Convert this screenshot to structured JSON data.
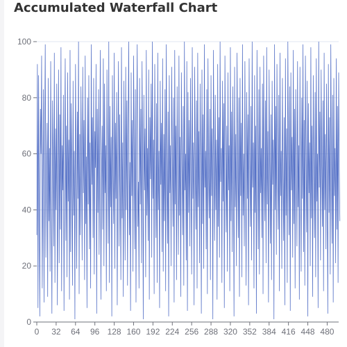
{
  "title": "Accumulated Waterfall Chart",
  "colors": {
    "series": "#5470c6",
    "grid": "#e0e6f1",
    "axis": "#6e7079"
  },
  "chart_data": {
    "type": "bar",
    "title": "Accumulated Waterfall Chart",
    "xlabel": "",
    "ylabel": "",
    "ylim": [
      0,
      100
    ],
    "y_ticks": [
      0,
      20,
      40,
      60,
      80,
      100
    ],
    "x_tick_labels": [
      "0",
      "32",
      "64",
      "96",
      "128",
      "160",
      "192",
      "224",
      "256",
      "288",
      "320",
      "352",
      "384",
      "416",
      "448",
      "480"
    ],
    "x_count": 500,
    "x_label_interval": 32,
    "grid": true,
    "legend": "none",
    "series": [
      {
        "values": [
          31,
          92,
          5,
          88,
          41,
          2,
          76,
          60,
          95,
          12,
          48,
          83,
          7,
          66,
          99,
          23,
          54,
          71,
          9,
          87,
          36,
          62,
          18,
          93,
          45,
          3,
          79,
          58,
          27,
          96,
          14,
          69,
          40,
          85,
          6,
          52,
          90,
          21,
          74,
          33,
          98,
          11,
          63,
          47,
          81,
          4,
          57,
          94,
          29,
          70,
          16,
          89,
          43,
          65,
          8,
          97,
          25,
          78,
          50,
          13,
          86,
          38,
          61,
          1,
          92,
          56,
          19,
          75,
          44,
          100,
          10,
          67,
          31,
          84,
          53,
          22,
          91,
          46,
          72,
          15,
          95,
          35,
          59,
          5,
          80,
          42,
          88,
          26,
          64,
          12,
          99,
          49,
          73,
          30,
          87,
          17,
          68,
          55,
          92,
          3,
          76,
          39,
          83,
          24,
          60,
          97,
          8,
          51,
          70,
          33,
          94,
          20,
          85,
          46,
          63,
          11,
          90,
          58,
          28,
          100,
          14,
          77,
          41,
          66,
          2,
          88,
          52,
          35,
          96,
          19,
          71,
          44,
          82,
          6,
          59,
          93,
          27,
          74,
          48,
          15,
          98,
          37,
          64,
          9,
          86,
          54,
          22,
          91,
          40,
          79,
          13,
          68,
          100,
          31,
          57,
          4,
          89,
          45,
          72,
          18,
          95,
          60,
          26,
          83,
          7,
          66,
          99,
          34,
          50,
          12,
          87,
          42,
          76,
          21,
          93,
          55,
          1,
          81,
          47,
          69,
          16,
          97,
          38,
          62,
          29,
          90,
          8,
          73,
          51,
          85,
          23,
          100,
          44,
          65,
          10,
          92,
          57,
          30,
          78,
          14,
          96,
          40,
          61,
          5,
          86,
          49,
          71,
          25,
          94,
          18,
          67,
          36,
          83,
          11,
          99,
          53,
          28,
          75,
          2,
          88,
          46,
          63,
          20,
          91,
          59,
          34,
          80,
          7,
          97,
          42,
          70,
          15,
          84,
          52,
          24,
          95,
          38,
          66,
          9,
          89,
          56,
          31,
          77,
          13,
          100,
          47,
          60,
          22,
          93,
          4,
          82,
          39,
          72,
          27,
          87,
          50,
          17,
          98,
          44,
          64,
          6,
          91,
          54,
          33,
          79,
          12,
          96,
          41,
          68,
          21,
          85,
          58,
          3,
          90,
          35,
          74,
          19,
          99,
          48,
          61,
          26,
          83,
          10,
          94,
          52,
          37,
          76,
          15,
          88,
          45,
          69,
          1,
          97,
          56,
          29,
          81,
          40,
          65,
          8,
          92,
          34,
          73,
          23,
          100,
          50,
          62,
          14,
          86,
          43,
          78,
          5,
          95,
          59,
          32,
          70,
          18,
          89,
          47,
          63,
          11,
          98,
          36,
          75,
          25,
          84,
          53,
          2,
          91,
          41,
          67,
          20,
          96,
          57,
          30,
          80,
          9,
          87,
          45,
          71,
          16,
          99,
          38,
          60,
          27,
          93,
          51,
          13,
          82,
          44,
          74,
          6,
          94,
          55,
          34,
          77,
          22,
          100,
          48,
          64,
          12,
          88,
          39,
          70,
          3,
          97,
          58,
          26,
          83,
          17,
          91,
          46,
          62,
          30,
          85,
          10,
          95,
          53,
          36,
          79,
          21,
          98,
          42,
          68,
          7,
          90,
          57,
          28,
          74,
          15,
          86,
          49,
          65,
          1,
          99,
          40,
          77,
          24,
          92,
          55,
          33,
          81,
          11,
          96,
          45,
          61,
          19,
          87,
          52,
          29,
          73,
          6,
          94,
          38,
          69,
          14,
          100,
          59,
          31,
          84,
          4,
          89,
          47,
          66,
          23,
          97,
          35,
          76,
          12,
          83,
          54,
          27,
          93,
          41,
          63,
          8,
          91,
          50,
          18,
          80,
          44,
          99,
          25,
          72,
          13,
          95,
          57,
          32,
          86,
          2,
          78,
          46,
          64,
          20,
          98,
          37,
          70,
          9,
          88,
          53,
          30,
          82,
          16,
          94,
          43,
          60,
          5,
          100,
          48,
          75,
          22,
          90,
          56,
          34,
          79,
          11,
          96,
          40,
          67,
          26,
          85,
          51,
          3,
          92,
          39,
          73,
          17,
          99,
          58,
          28,
          81,
          7,
          87,
          45,
          62,
          21,
          94,
          33,
          77,
          14,
          89,
          54,
          36
        ]
      }
    ]
  }
}
